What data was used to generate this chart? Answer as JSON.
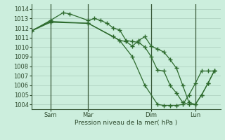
{
  "background_color": "#cceedd",
  "grid_color": "#aaccbb",
  "line_color": "#2d6a2d",
  "ylabel_text": "Pression niveau de la mer( hPa )",
  "ylim": [
    1003.5,
    1014.5
  ],
  "yticks": [
    1004,
    1005,
    1006,
    1007,
    1008,
    1009,
    1010,
    1011,
    1012,
    1013,
    1014
  ],
  "xtick_labels": [
    "Sam",
    "Mar",
    "Dim",
    "Lun"
  ],
  "xtick_positions": [
    3,
    9,
    19,
    26
  ],
  "vline_positions": [
    3,
    9,
    19,
    26
  ],
  "xlim": [
    0,
    30
  ],
  "line1_x": [
    0,
    3,
    5,
    6,
    9,
    10,
    11,
    12,
    13,
    14,
    15,
    16,
    17,
    18,
    19,
    20,
    21,
    22,
    23,
    24,
    25,
    26,
    27,
    28,
    29
  ],
  "line1_y": [
    1011.7,
    1012.8,
    1013.6,
    1013.5,
    1012.8,
    1013.0,
    1012.8,
    1012.5,
    1012.0,
    1011.8,
    1010.7,
    1010.6,
    1010.5,
    1010.0,
    1009.0,
    1007.6,
    1007.5,
    1006.0,
    1005.2,
    1004.2,
    1004.0,
    1004.0,
    1005.0,
    1006.2,
    1007.5
  ],
  "line2_x": [
    0,
    3,
    9,
    13,
    14,
    15,
    16,
    17,
    18,
    19,
    20,
    21,
    22,
    23,
    24,
    25,
    26,
    27,
    28,
    29
  ],
  "line2_y": [
    1011.7,
    1012.7,
    1012.5,
    1011.1,
    1010.7,
    1010.6,
    1010.1,
    1010.7,
    1011.1,
    1010.1,
    1009.8,
    1009.5,
    1008.7,
    1007.8,
    1006.0,
    1004.2,
    1004.0,
    1005.0,
    1006.2,
    1007.5
  ],
  "line3_x": [
    0,
    3,
    9,
    14,
    16,
    18,
    20,
    21,
    22,
    23,
    24,
    25,
    26,
    27,
    28,
    29
  ],
  "line3_y": [
    1011.7,
    1012.6,
    1012.5,
    1010.7,
    1009.0,
    1006.0,
    1004.0,
    1003.9,
    1003.9,
    1003.9,
    1004.0,
    1005.0,
    1006.2,
    1007.5,
    1007.5,
    1007.5
  ]
}
